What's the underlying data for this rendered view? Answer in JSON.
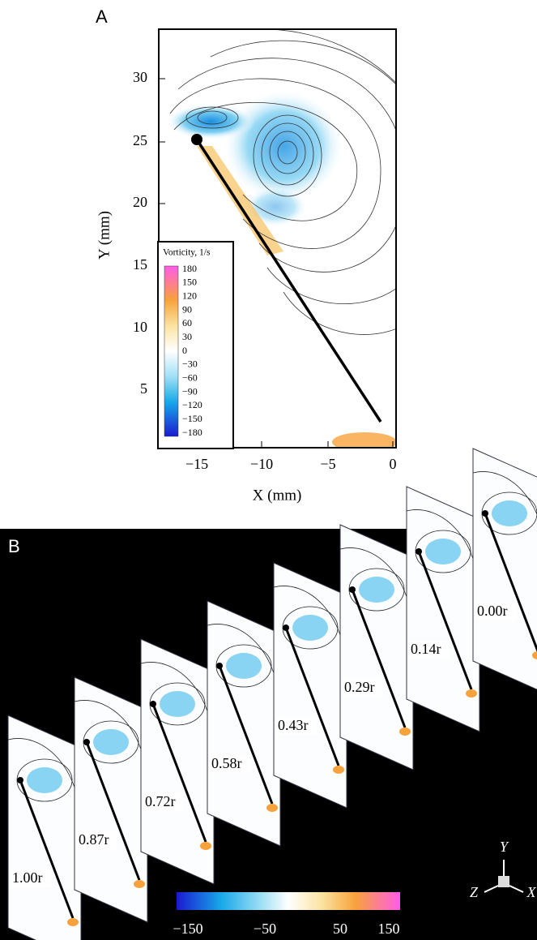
{
  "panel_a": {
    "label": "A",
    "y_axis_label": "Y (mm)",
    "x_axis_label": "X (mm)",
    "y_ticks": [
      "5",
      "10",
      "15",
      "20",
      "25",
      "30"
    ],
    "x_ticks": [
      "−15",
      "−10",
      "−5",
      "0"
    ],
    "legend": {
      "title": "Vorticity, 1/s",
      "levels": [
        "180",
        "150",
        "120",
        "90",
        "60",
        "30",
        "0",
        "−30",
        "−60",
        "−90",
        "−120",
        "−150",
        "−180"
      ]
    }
  },
  "panel_b": {
    "label": "B",
    "slices": [
      "1.00r",
      "0.87r",
      "0.72r",
      "0.58r",
      "0.43r",
      "0.29r",
      "0.14r",
      "0.00r"
    ],
    "colorbar_ticks": [
      "−150",
      "−50",
      "50",
      "150"
    ],
    "axes": {
      "y": "Y",
      "z": "Z",
      "x": "X"
    }
  }
}
